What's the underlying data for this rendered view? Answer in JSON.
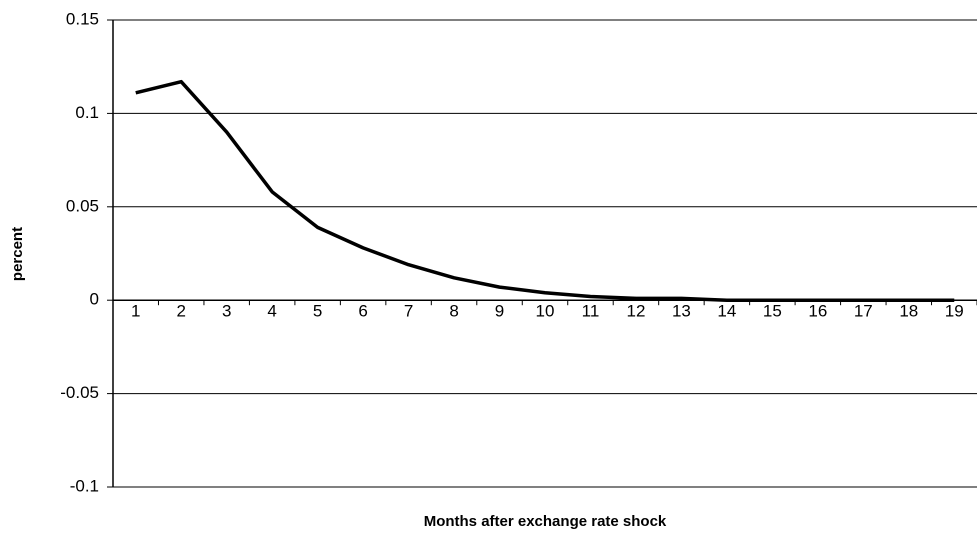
{
  "chart_data": {
    "type": "line",
    "xlabel": "Months after exchange rate shock",
    "ylabel": "percent",
    "categories": [
      1,
      2,
      3,
      4,
      5,
      6,
      7,
      8,
      9,
      10,
      11,
      12,
      13,
      14,
      15,
      16,
      17,
      18,
      19
    ],
    "series": [
      {
        "color": "#000000",
        "values": [
          0.111,
          0.117,
          0.09,
          0.058,
          0.039,
          0.028,
          0.019,
          0.012,
          0.007,
          0.004,
          0.002,
          0.001,
          0.001,
          0,
          0,
          0,
          0,
          0,
          0
        ]
      }
    ],
    "ylim": [
      -0.1,
      0.15
    ],
    "yticks": [
      -0.1,
      -0.05,
      0,
      0.05,
      0.1,
      0.15
    ],
    "grid": true
  }
}
